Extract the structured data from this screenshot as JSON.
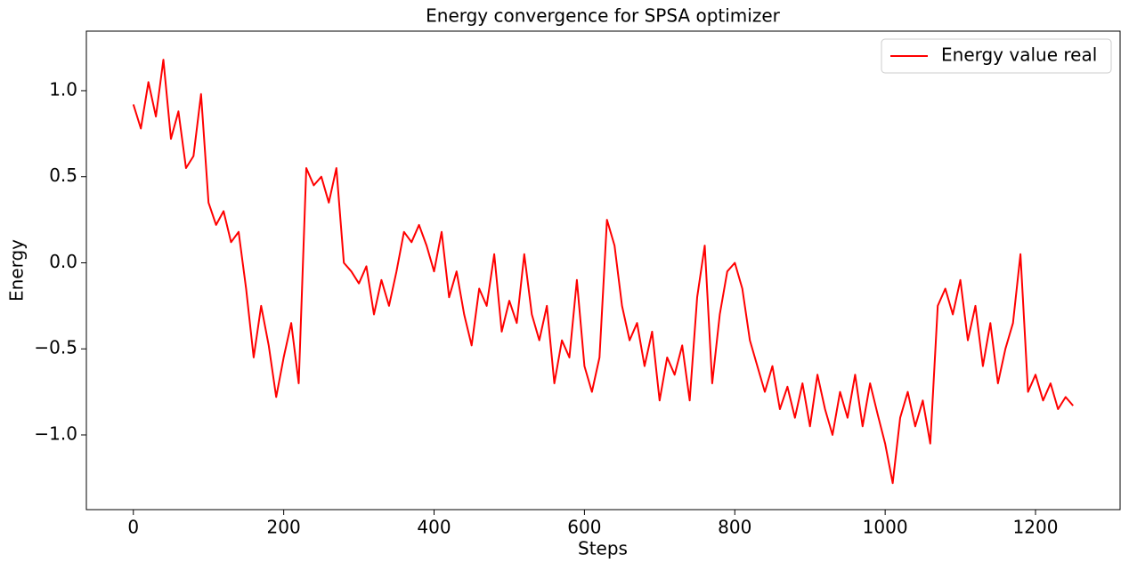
{
  "chart_data": {
    "type": "line",
    "title": "Energy convergence for SPSA optimizer",
    "x_label": "Steps",
    "y_label": "Energy",
    "x": [
      0,
      10,
      20,
      30,
      40,
      50,
      60,
      70,
      80,
      90,
      100,
      110,
      120,
      130,
      140,
      150,
      160,
      170,
      180,
      190,
      200,
      210,
      220,
      230,
      240,
      250,
      260,
      270,
      280,
      290,
      300,
      310,
      320,
      330,
      340,
      350,
      360,
      370,
      380,
      390,
      400,
      410,
      420,
      430,
      440,
      450,
      460,
      470,
      480,
      490,
      500,
      510,
      520,
      530,
      540,
      550,
      560,
      570,
      580,
      590,
      600,
      610,
      620,
      630,
      640,
      650,
      660,
      670,
      680,
      690,
      700,
      710,
      720,
      730,
      740,
      750,
      760,
      770,
      780,
      790,
      800,
      810,
      820,
      830,
      840,
      850,
      860,
      870,
      880,
      890,
      900,
      910,
      920,
      930,
      940,
      950,
      960,
      970,
      980,
      990,
      1000,
      1010,
      1020,
      1030,
      1040,
      1050,
      1060,
      1070,
      1080,
      1090,
      1100,
      1110,
      1120,
      1130,
      1140,
      1150,
      1160,
      1170,
      1180,
      1190,
      1200,
      1210,
      1220,
      1230,
      1240,
      1250
    ],
    "series": [
      {
        "name": "Energy value real",
        "color": "#ff0000",
        "values": [
          0.92,
          0.78,
          1.05,
          0.85,
          1.18,
          0.72,
          0.88,
          0.55,
          0.62,
          0.98,
          0.35,
          0.22,
          0.3,
          0.12,
          0.18,
          -0.15,
          -0.55,
          -0.25,
          -0.48,
          -0.78,
          -0.55,
          -0.35,
          -0.7,
          0.55,
          0.45,
          0.5,
          0.35,
          0.55,
          0.0,
          -0.05,
          -0.12,
          -0.02,
          -0.3,
          -0.1,
          -0.25,
          -0.05,
          0.18,
          0.12,
          0.22,
          0.1,
          -0.05,
          0.18,
          -0.2,
          -0.05,
          -0.3,
          -0.48,
          -0.15,
          -0.25,
          0.05,
          -0.4,
          -0.22,
          -0.35,
          0.05,
          -0.3,
          -0.45,
          -0.25,
          -0.7,
          -0.45,
          -0.55,
          -0.1,
          -0.6,
          -0.75,
          -0.55,
          0.25,
          0.1,
          -0.25,
          -0.45,
          -0.35,
          -0.6,
          -0.4,
          -0.8,
          -0.55,
          -0.65,
          -0.48,
          -0.8,
          -0.2,
          0.1,
          -0.7,
          -0.3,
          -0.05,
          0.0,
          -0.15,
          -0.45,
          -0.6,
          -0.75,
          -0.6,
          -0.85,
          -0.72,
          -0.9,
          -0.7,
          -0.95,
          -0.65,
          -0.85,
          -1.0,
          -0.75,
          -0.9,
          -0.65,
          -0.95,
          -0.7,
          -0.88,
          -1.05,
          -1.28,
          -0.9,
          -0.75,
          -0.95,
          -0.8,
          -1.05,
          -0.25,
          -0.15,
          -0.3,
          -0.1,
          -0.45,
          -0.25,
          -0.6,
          -0.35,
          -0.7,
          -0.5,
          -0.35,
          0.05,
          -0.75,
          -0.65,
          -0.8,
          -0.7,
          -0.85,
          -0.78,
          -0.83
        ]
      }
    ],
    "xlim": [
      -62.5,
      1312.5
    ],
    "xticks": [
      0,
      200,
      400,
      600,
      800,
      1000,
      1200
    ],
    "ylim": [
      -1.434,
      1.346
    ],
    "yticks": [
      {
        "value": -1.0,
        "label": "−1.0"
      },
      {
        "value": -0.5,
        "label": "−0.5"
      },
      {
        "value": 0.0,
        "label": "0.0"
      },
      {
        "value": 0.5,
        "label": "0.5"
      },
      {
        "value": 1.0,
        "label": "1.0"
      }
    ],
    "legend": "upper right"
  }
}
